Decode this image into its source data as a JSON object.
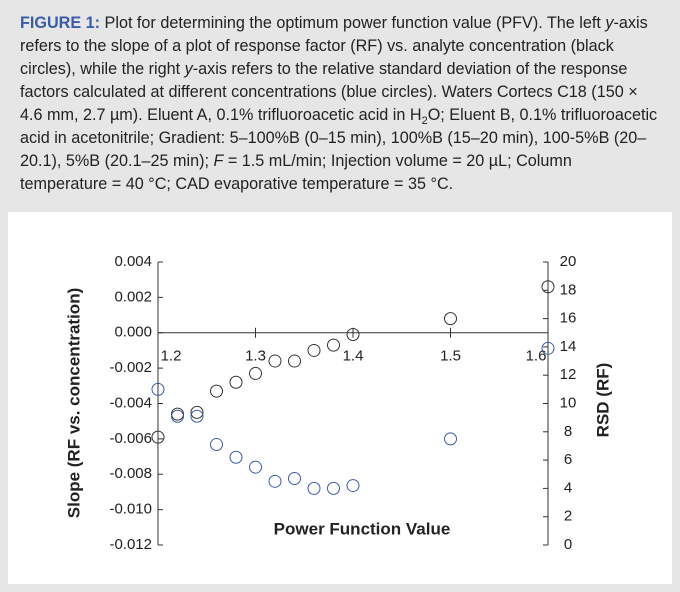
{
  "caption": {
    "runs": [
      "FIGURE 1:",
      " Plot for determining the optimum power function value (PFV). The left ",
      "y",
      "-axis refers to the slope of a plot of response factor (RF) vs. analyte concentration (black circles), while the right ",
      "y",
      "-axis refers to the relative standard deviation of the response factors calculated at different concentrations (blue circles). Waters Cortecs C18 (150 × 4.6 mm, 2.7 µm). Eluent A, 0.1% trifluoroacetic acid in H",
      "2",
      "O; Eluent B, 0.1% trifluoroacetic acid in acetonitrile; Gradient: 5–100%B (0–15 min), 100%B (15–20 min), 100-5%B (20–20.1), 5%B (20.1–25 min); ",
      "F",
      " = 1.5 mL/min; Injection volume = 20 µL; Column temperature = 40 °C; CAD evaporative temperature = 35 °C."
    ]
  },
  "chart_data": {
    "type": "scatter",
    "x_label": "Power Function Value",
    "y_label": "Slope (RF vs. concentration)",
    "y2_label": "RSD (RF)",
    "x": [
      1.2,
      1.22,
      1.24,
      1.26,
      1.28,
      1.3,
      1.32,
      1.34,
      1.36,
      1.38,
      1.4,
      1.5,
      1.6
    ],
    "series": [
      {
        "color": "#333333",
        "values": [
          -0.0059,
          -0.0046,
          -0.0045,
          -0.0033,
          -0.0028,
          -0.0023,
          -0.0016,
          -0.0016,
          -0.001,
          -0.0007,
          -0.0001,
          0.0008,
          0.0026
        ]
      },
      {
        "color": "#3a5ba8",
        "axis": "y2",
        "values": [
          11.0,
          9.1,
          9.1,
          7.1,
          6.2,
          5.5,
          4.5,
          4.7,
          4.0,
          4.0,
          4.2,
          7.5,
          13.9
        ]
      }
    ],
    "xlim": [
      1.2,
      1.6
    ],
    "xticks": [
      1.2,
      1.3,
      1.4,
      1.5,
      1.6
    ],
    "ylim": [
      -0.012,
      0.004
    ],
    "yticks": [
      0.004,
      0.002,
      {
        "value": 0,
        "label": "0.000"
      },
      -0.002,
      -0.004,
      -0.006,
      -0.008,
      {
        "value": -0.01,
        "label": "-0.010"
      },
      -0.012
    ],
    "y2lim": [
      0,
      20
    ],
    "y2ticks": [
      0,
      2,
      4,
      6,
      8,
      10,
      12,
      14,
      16,
      18,
      20
    ],
    "y2_color": "#3a5ba8"
  }
}
